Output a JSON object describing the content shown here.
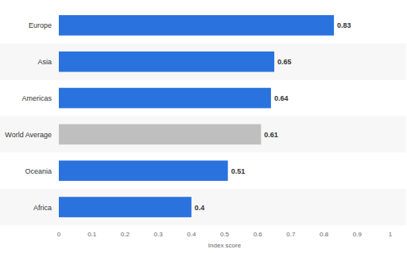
{
  "chart_data": {
    "type": "bar",
    "orientation": "horizontal",
    "x_label": "Index score",
    "categories": [
      "Europe",
      "Asia",
      "Americas",
      "World Average",
      "Oceania",
      "Africa"
    ],
    "values": [
      0.83,
      0.65,
      0.64,
      0.61,
      0.51,
      0.4
    ],
    "colors": [
      "#2a72de",
      "#2a72de",
      "#2a72de",
      "#bfbfbf",
      "#2a72de",
      "#2a72de"
    ],
    "xlim": [
      0,
      1
    ],
    "xticks": [
      0,
      0.1,
      0.2,
      0.3,
      0.4,
      0.5,
      0.6,
      0.7,
      0.8,
      0.9,
      1
    ],
    "grid": false,
    "data_labels": true
  }
}
